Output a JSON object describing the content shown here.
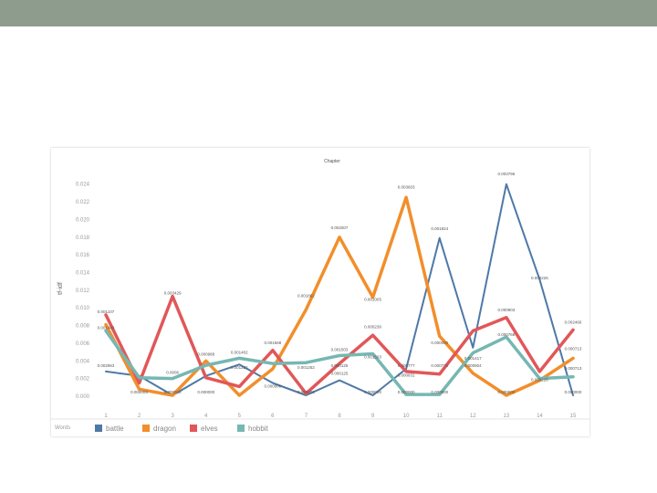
{
  "chart_data": {
    "type": "line",
    "title": "Chapter",
    "ylabel": "tf-idf",
    "legend_title": "Words",
    "legend_position": "bottom",
    "grid": false,
    "x": [
      1,
      2,
      3,
      4,
      5,
      6,
      7,
      8,
      9,
      10,
      11,
      12,
      13,
      14,
      15
    ],
    "ylim": [
      0,
      0.025
    ],
    "yticks": [
      "0.000",
      "0.002",
      "0.004",
      "0.006",
      "0.008",
      "0.010",
      "0.012",
      "0.014",
      "0.016",
      "0.018",
      "0.020",
      "0.022",
      "0.024"
    ],
    "series": [
      {
        "name": "battle",
        "color": "#4e79a7",
        "width": 2,
        "values": [
          0.0028,
          0.0023,
          0.0001,
          0.0023,
          0.0036,
          0.0015,
          0.0001,
          0.0018,
          0.0001,
          0.0031,
          0.0179,
          0.0055,
          0.024,
          0.0132,
          0.0001
        ]
      },
      {
        "name": "dragon",
        "color": "#f28e2b",
        "width": 3.5,
        "values": [
          0.0081,
          0.0008,
          0.0001,
          0.004,
          0.0001,
          0.0031,
          0.0098,
          0.018,
          0.0112,
          0.0225,
          0.0068,
          0.0026,
          0.0001,
          0.0018,
          0.0043
        ]
      },
      {
        "name": "elves",
        "color": "#e15759",
        "width": 3.5,
        "values": [
          0.0092,
          0.0015,
          0.0113,
          0.0021,
          0.0011,
          0.0052,
          0.0003,
          0.0037,
          0.0069,
          0.0028,
          0.0025,
          0.0074,
          0.0089,
          0.0028,
          0.0075
        ]
      },
      {
        "name": "hobbit",
        "color": "#76b7b2",
        "width": 3.5,
        "values": [
          0.0074,
          0.0021,
          0.002,
          0.0035,
          0.0043,
          0.0037,
          0.0038,
          0.0046,
          0.0048,
          0.0002,
          0.0002,
          0.0049,
          0.0067,
          0.002,
          0.0022
        ]
      }
    ],
    "annotations": [
      {
        "x": 1,
        "y": 0.0092,
        "text": "0.001107"
      },
      {
        "x": 1,
        "y": 0.0074,
        "text": "0.001443"
      },
      {
        "x": 1,
        "y": 0.0031,
        "text": "0.002963"
      },
      {
        "x": 2,
        "y": 0.0001,
        "text": "0.000000"
      },
      {
        "x": 3,
        "y": 0.0113,
        "text": "0.003429"
      },
      {
        "x": 3,
        "y": 0.0001,
        "text": "0.000000"
      },
      {
        "x": 3,
        "y": 0.0023,
        "text": "0.0006"
      },
      {
        "x": 4,
        "y": 0.0044,
        "text": "0.000988"
      },
      {
        "x": 4,
        "y": 0.0001,
        "text": "0.000000"
      },
      {
        "x": 5,
        "y": 0.0046,
        "text": "0.001402"
      },
      {
        "x": 5,
        "y": 0.0029,
        "text": "0.001222"
      },
      {
        "x": 6,
        "y": 0.0057,
        "text": "0.001668"
      },
      {
        "x": 6,
        "y": 0.0008,
        "text": "0.000000"
      },
      {
        "x": 7,
        "y": 0.0029,
        "text": "0.001252"
      },
      {
        "x": 7,
        "y": 0.0001,
        "text": "0.000000"
      },
      {
        "x": 7,
        "y": 0.011,
        "text": "0.001862"
      },
      {
        "x": 8,
        "y": 0.0187,
        "text": "0.002007"
      },
      {
        "x": 8,
        "y": 0.0049,
        "text": "0.001503"
      },
      {
        "x": 8,
        "y": 0.0031,
        "text": "0.000125"
      },
      {
        "x": 8,
        "y": 0.0022,
        "text": "0.000125"
      },
      {
        "x": 9,
        "y": 0.0106,
        "text": "0.001005"
      },
      {
        "x": 9,
        "y": 0.0075,
        "text": "0.000236"
      },
      {
        "x": 9,
        "y": 0.0041,
        "text": "0.001503"
      },
      {
        "x": 9,
        "y": 0.0001,
        "text": "0.000000"
      },
      {
        "x": 10,
        "y": 0.0233,
        "text": "0.003603"
      },
      {
        "x": 10,
        "y": 0.0031,
        "text": "0.000777"
      },
      {
        "x": 10,
        "y": 0.002,
        "text": "0.000831"
      },
      {
        "x": 10,
        "y": 0.0001,
        "text": "0.000000"
      },
      {
        "x": 11,
        "y": 0.0186,
        "text": "0.001824"
      },
      {
        "x": 11,
        "y": 0.0057,
        "text": "0.000000"
      },
      {
        "x": 11,
        "y": 0.0031,
        "text": "0.000774"
      },
      {
        "x": 11,
        "y": 0.0001,
        "text": "0.000000"
      },
      {
        "x": 12,
        "y": 0.0039,
        "text": "0.001417"
      },
      {
        "x": 12,
        "y": 0.0031,
        "text": "0.000904"
      },
      {
        "x": 13,
        "y": 0.0248,
        "text": "0.003796"
      },
      {
        "x": 13,
        "y": 0.0094,
        "text": "0.000903"
      },
      {
        "x": 13,
        "y": 0.0066,
        "text": "0.000768"
      },
      {
        "x": 13,
        "y": 0.0001,
        "text": "0.000000"
      },
      {
        "x": 14,
        "y": 0.013,
        "text": "0.000226"
      },
      {
        "x": 14,
        "y": 0.0015,
        "text": "0.000226"
      },
      {
        "x": 15,
        "y": 0.008,
        "text": "0.002466"
      },
      {
        "x": 15,
        "y": 0.005,
        "text": "0.000713"
      },
      {
        "x": 15,
        "y": 0.0028,
        "text": "0.000713"
      },
      {
        "x": 15,
        "y": 0.0001,
        "text": "0.000000"
      }
    ]
  }
}
